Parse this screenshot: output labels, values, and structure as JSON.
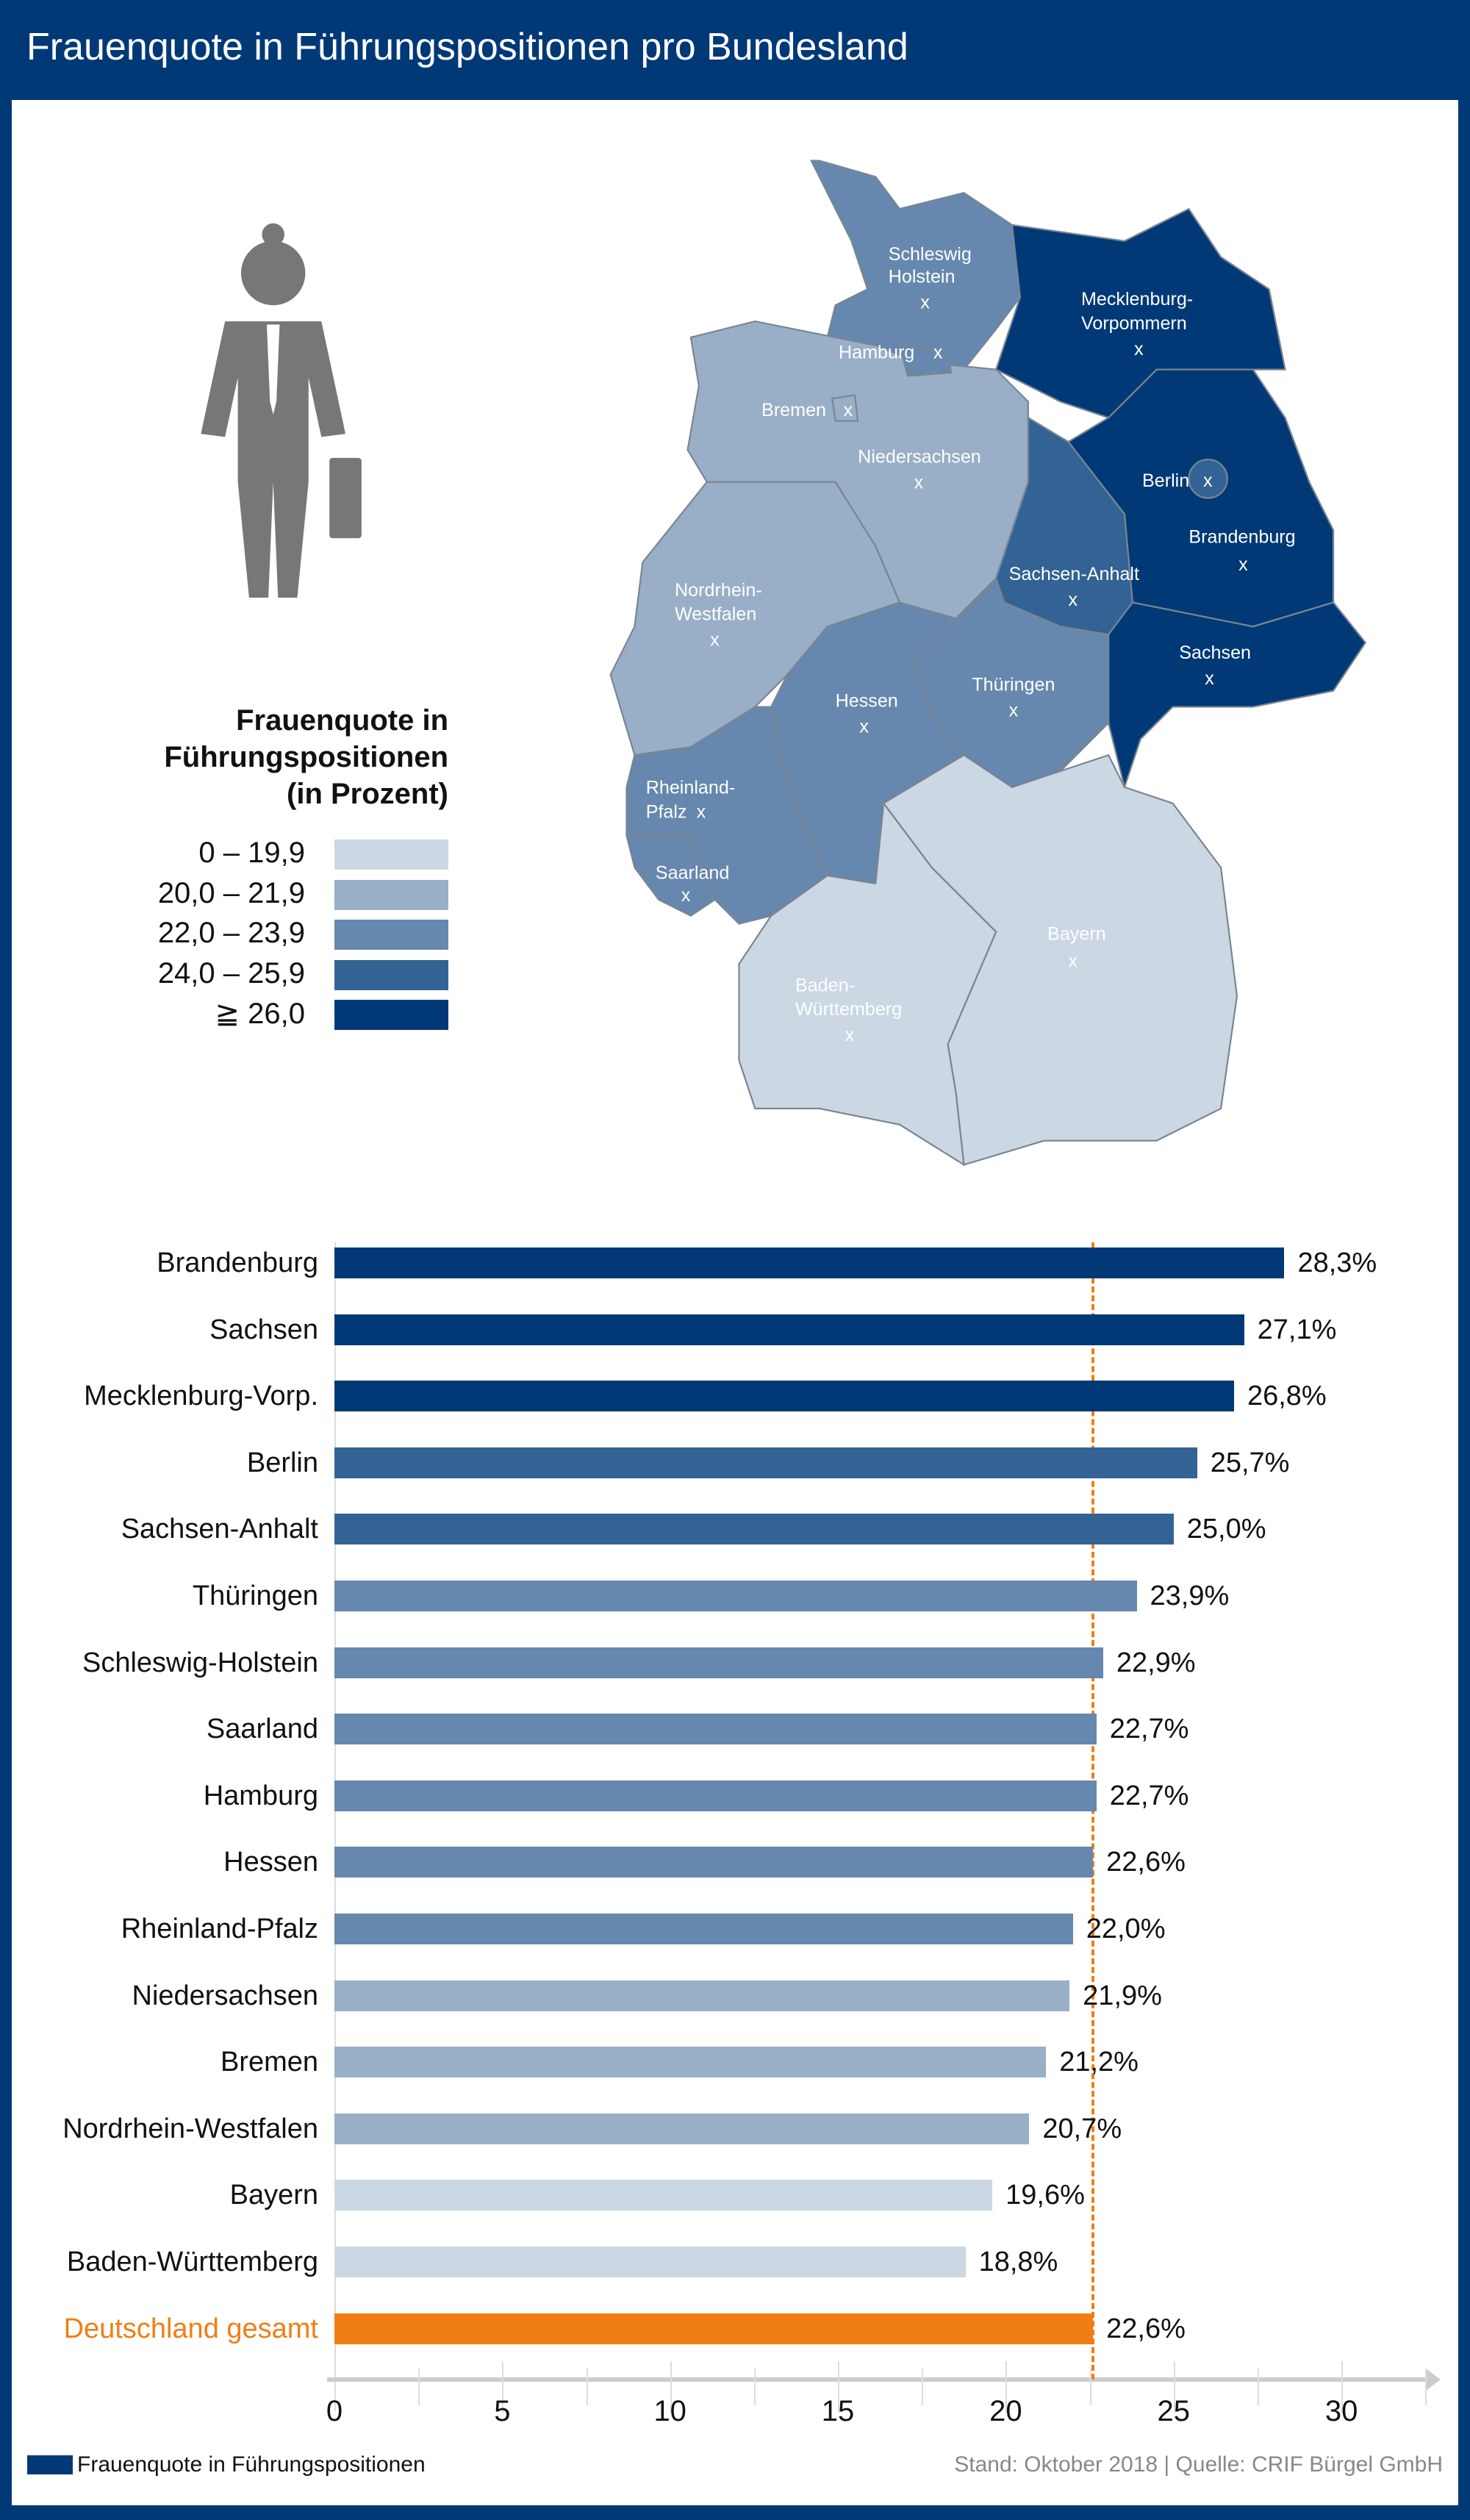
{
  "title": "Frauenquote in Führungspositionen pro Bundesland",
  "legend": {
    "title_lines": [
      "Frauenquote in",
      "Führungspositionen",
      "(in Prozent)"
    ],
    "classes": [
      {
        "label": "0  –  19,9",
        "color": "#cbd7e3"
      },
      {
        "label": "20,0  –  21,9",
        "color": "#99afc8"
      },
      {
        "label": "22,0  –  23,9",
        "color": "#6688ae"
      },
      {
        "label": "24,0  –  25,9",
        "color": "#336394"
      },
      {
        "label": "≧ 26,0",
        "color": "#003976"
      }
    ]
  },
  "map_labels": {
    "sh": [
      "Schleswig",
      "Holstein"
    ],
    "hh": "Hamburg",
    "mv": [
      "Mecklenburg-",
      "Vorpommern"
    ],
    "hb": "Bremen",
    "ni": "Niedersachsen",
    "be": "Berlin",
    "bb": "Brandenburg",
    "st": "Sachsen-Anhalt",
    "nw": [
      "Nordrhein-",
      "Westfalen"
    ],
    "sn": "Sachsen",
    "he": "Hessen",
    "th": "Thüringen",
    "rp": [
      "Rheinland-",
      "Pfalz"
    ],
    "sl": "Saarland",
    "by": "Bayern",
    "bw": [
      "Baden-",
      "Württemberg"
    ],
    "marker": "x"
  },
  "chart_data": {
    "type": "bar",
    "orientation": "horizontal",
    "xlim": [
      0,
      30
    ],
    "xticks": [
      0,
      5,
      10,
      15,
      20,
      25,
      30
    ],
    "reference_line": {
      "value": 22.6,
      "label": "Deutschland gesamt"
    },
    "categories": [
      "Brandenburg",
      "Sachsen",
      "Mecklenburg-Vorp.",
      "Berlin",
      "Sachsen-Anhalt",
      "Thüringen",
      "Schleswig-Holstein",
      "Saarland",
      "Hamburg",
      "Hessen",
      "Rheinland-Pfalz",
      "Niedersachsen",
      "Bremen",
      "Nordrhein-Westfalen",
      "Bayern",
      "Baden-Württemberg",
      "Deutschland gesamt"
    ],
    "values": [
      28.3,
      27.1,
      26.8,
      25.7,
      25.0,
      23.9,
      22.9,
      22.7,
      22.7,
      22.6,
      22.0,
      21.9,
      21.2,
      20.7,
      19.6,
      18.8,
      22.6
    ],
    "value_labels": [
      "28,3%",
      "27,1%",
      "26,8%",
      "25,7%",
      "25,0%",
      "23,9%",
      "22,9%",
      "22,7%",
      "22,7%",
      "22,6%",
      "22,0%",
      "21,9%",
      "21,2%",
      "20,7%",
      "19,6%",
      "18,8%",
      "22,6%"
    ],
    "colors": [
      "#003976",
      "#003976",
      "#003976",
      "#336394",
      "#336394",
      "#6688ae",
      "#6688ae",
      "#6688ae",
      "#6688ae",
      "#6688ae",
      "#6688ae",
      "#99afc8",
      "#99afc8",
      "#99afc8",
      "#cbd7e3",
      "#cbd7e3",
      "#ef7f14"
    ],
    "legend": "Frauenquote in Führungspositionen"
  },
  "footer": {
    "legend": "Frauenquote in Führungspositionen",
    "source": "Stand: Oktober 2018 | Quelle: CRIF Bürgel GmbH"
  }
}
